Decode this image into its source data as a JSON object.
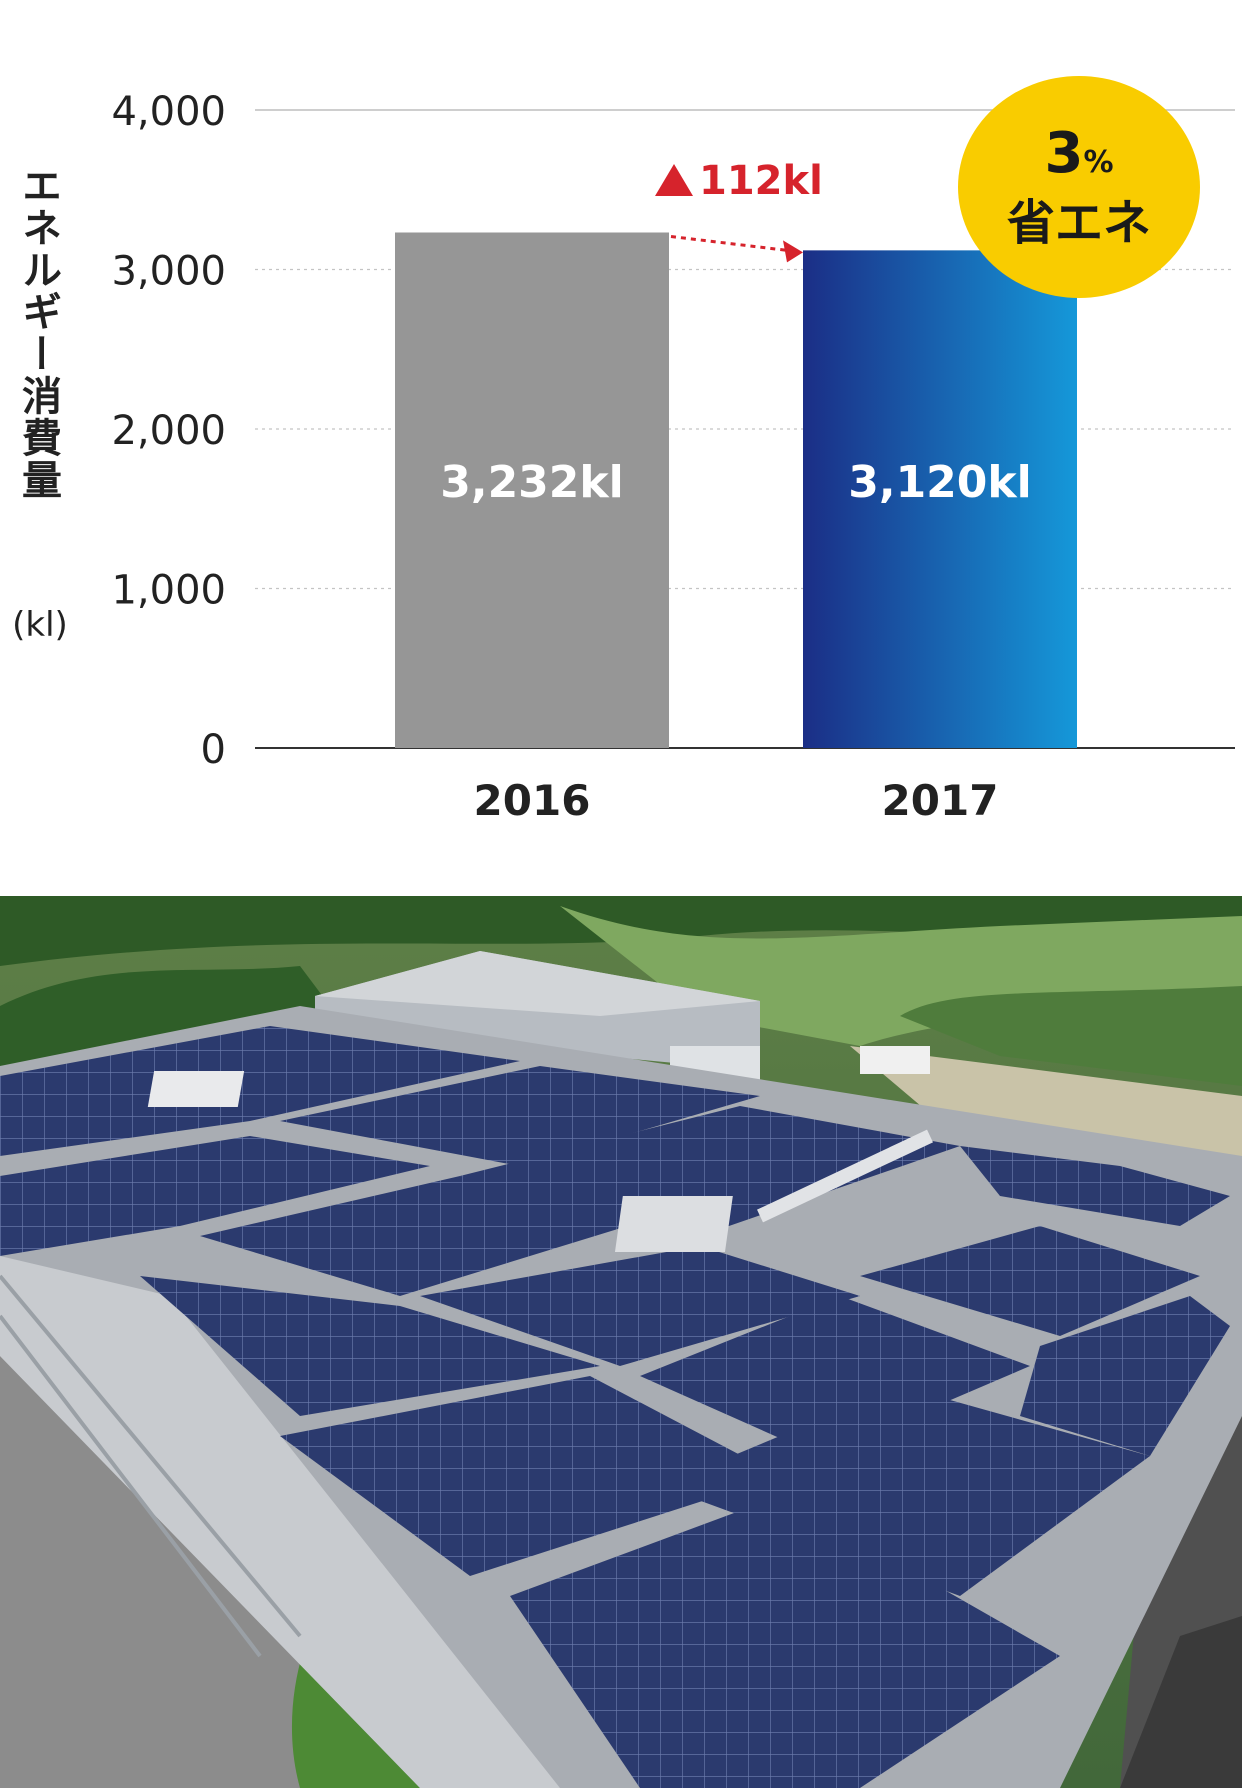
{
  "chart_data": {
    "type": "bar",
    "categories": [
      "2016",
      "2017"
    ],
    "values": [
      3232,
      3120
    ],
    "value_labels": [
      "3,232kl",
      "3,120kl"
    ],
    "ylabel": "エネルギー消費量",
    "yunit": "(kl)",
    "ylim": [
      0,
      4000
    ],
    "yticks": [
      0,
      1000,
      2000,
      3000,
      4000
    ],
    "ytick_labels": [
      "0",
      "1,000",
      "2,000",
      "3,000",
      "4,000"
    ],
    "grid": true,
    "bar_colors": [
      "#969696",
      "gradient:#1b2e86-#1598d9"
    ],
    "annotation": {
      "label": "112kl",
      "color": "#d6232c"
    },
    "badge": {
      "value": "3",
      "unit": "%",
      "text": "省エネ",
      "color": "#f9cc00"
    }
  },
  "photo": {
    "icon": "solar-roof-aerial-photo"
  }
}
